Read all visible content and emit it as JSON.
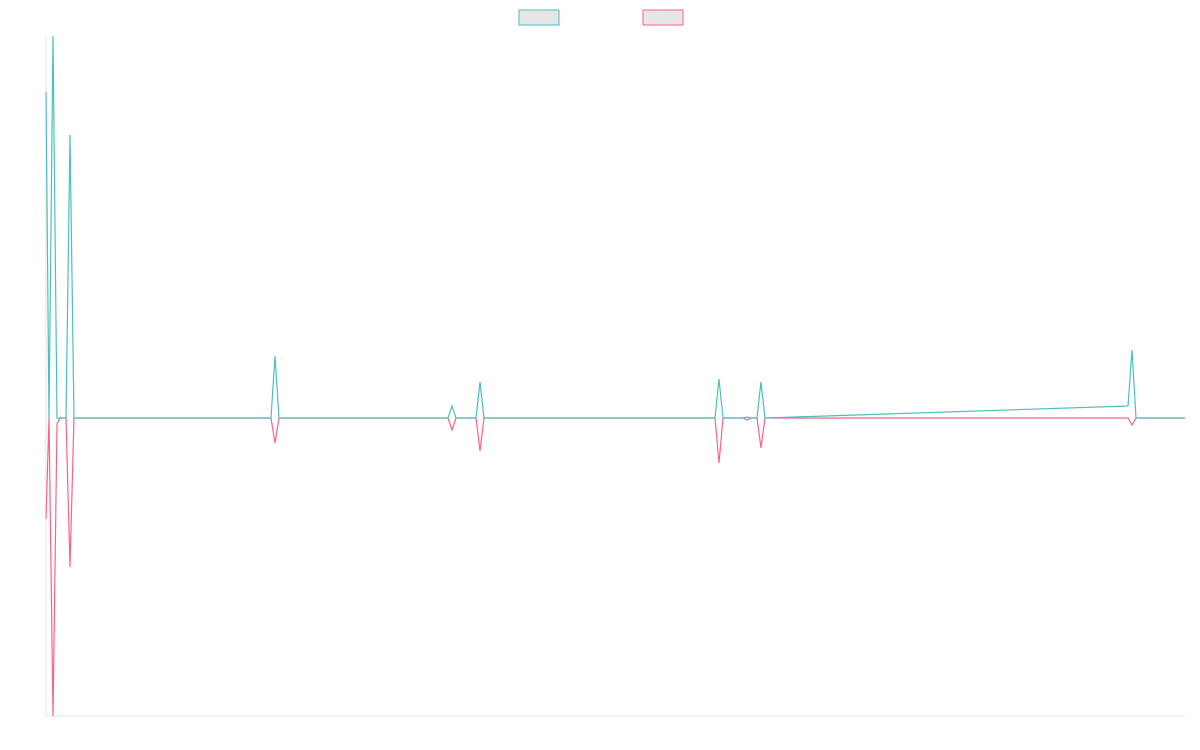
{
  "chart_data": {
    "type": "line",
    "x": [
      0,
      3,
      7,
      11,
      14,
      20,
      24,
      28,
      225,
      229,
      233,
      402,
      406,
      410,
      430,
      434,
      438,
      669,
      673,
      677,
      697,
      701,
      705,
      711,
      715,
      719,
      1082,
      1086,
      1090,
      1139
    ],
    "series": [
      {
        "color": "#4bc0c0",
        "values": [
          326,
          0,
          382,
          0,
          0,
          0,
          283,
          0,
          0,
          62,
          0,
          0,
          12,
          0,
          0,
          36,
          0,
          0,
          39,
          0,
          0,
          1,
          0,
          0,
          36,
          0,
          12,
          68,
          0,
          0
        ]
      },
      {
        "color": "#ff6384",
        "values": [
          -101,
          0,
          -298,
          -6,
          0,
          0,
          -149,
          0,
          0,
          -25,
          0,
          0,
          -12,
          0,
          0,
          -33,
          0,
          0,
          -45,
          0,
          0,
          -2,
          0,
          0,
          -30,
          0,
          0,
          -7,
          0,
          0
        ]
      }
    ],
    "xlim": [
      0,
      1139
    ],
    "ylim": [
      -298,
      382
    ],
    "legend": "top"
  }
}
